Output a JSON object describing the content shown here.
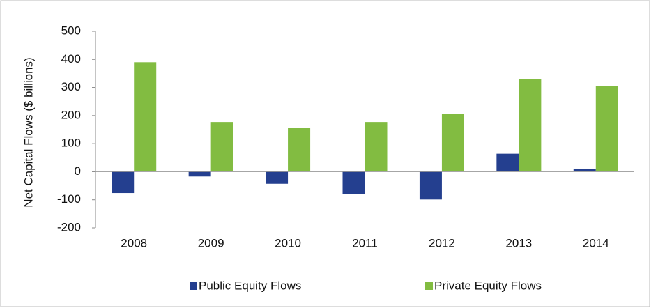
{
  "chart_data": {
    "type": "bar",
    "y_label": "Net Capital Flows ($ billions)",
    "categories": [
      "2008",
      "2009",
      "2010",
      "2011",
      "2012",
      "2013",
      "2014"
    ],
    "series": [
      {
        "name": "Public Equity Flows",
        "color": "#243f8f",
        "values": [
          -76,
          -17,
          -43,
          -80,
          -99,
          64,
          11
        ]
      },
      {
        "name": "Private Equity Flows",
        "color": "#82bc41",
        "values": [
          390,
          177,
          157,
          177,
          206,
          330,
          305
        ]
      }
    ],
    "ylim": [
      -200,
      500
    ],
    "yticks": [
      -200,
      -100,
      0,
      100,
      200,
      300,
      400,
      500
    ],
    "grid": false,
    "legend": "bottom"
  }
}
